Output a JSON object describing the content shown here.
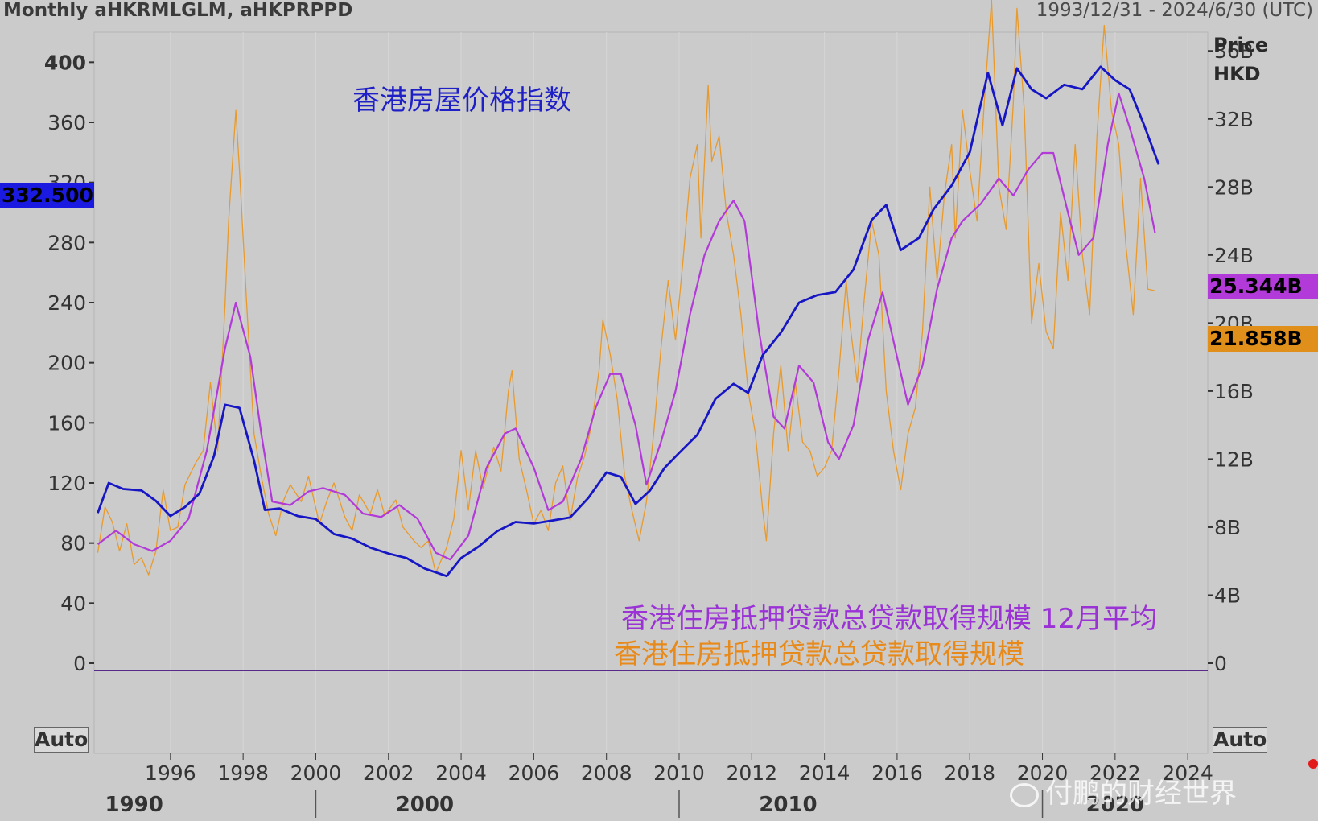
{
  "header": {
    "title": "Monthly aHKRMLGLM, aHKPRPPD",
    "date_range": "1993/12/31 - 2024/6/30 (UTC)"
  },
  "right_axis_header": {
    "line1": "Price",
    "line2": "HKD"
  },
  "buttons": {
    "left_auto": "Auto",
    "right_auto": "Auto"
  },
  "badges": {
    "left_value": "332.500",
    "purple_value": "25.344B",
    "orange_value": "21.858B"
  },
  "annotations": {
    "price_index": "香港房屋价格指数",
    "mortgage_avg": "香港住房抵押贷款总贷款取得规模 12月平均",
    "mortgage": "香港住房抵押贷款总贷款取得规模"
  },
  "watermark": "付鹏的财经世界",
  "colors": {
    "price_index": "#1616c4",
    "mortgage_avg": "#b23ad8",
    "mortgage": "#e89a2c",
    "grid": "#ffffff",
    "background": "#cbcbcb"
  },
  "chart_data": {
    "type": "line",
    "x_ticks": [
      "1996",
      "1998",
      "2000",
      "2002",
      "2004",
      "2006",
      "2008",
      "2010",
      "2012",
      "2014",
      "2016",
      "2018",
      "2020",
      "2022",
      "2024"
    ],
    "decade_labels": [
      "1990",
      "2000",
      "2010",
      "2020"
    ],
    "left_axis": {
      "ticks": [
        "0",
        "40",
        "80",
        "120",
        "160",
        "200",
        "240",
        "280",
        "320",
        "360",
        "400"
      ],
      "range": [
        -60,
        420
      ]
    },
    "right_axis": {
      "ticks": [
        "0",
        "4B",
        "8B",
        "12B",
        "16B",
        "20B",
        "24B",
        "28B",
        "32B",
        "36B"
      ],
      "range_billion": [
        -5.3,
        37.1
      ]
    },
    "x_range": [
      1993.9,
      2024.55
    ],
    "series": [
      {
        "name": "香港房屋价格指数",
        "axis": "left",
        "points": [
          [
            1994.0,
            100
          ],
          [
            1994.3,
            120
          ],
          [
            1994.7,
            116
          ],
          [
            1995.2,
            115
          ],
          [
            1995.6,
            108
          ],
          [
            1996.0,
            98
          ],
          [
            1996.4,
            104
          ],
          [
            1996.8,
            113
          ],
          [
            1997.2,
            138
          ],
          [
            1997.5,
            172
          ],
          [
            1997.9,
            170
          ],
          [
            1998.3,
            135
          ],
          [
            1998.6,
            102
          ],
          [
            1999.0,
            103
          ],
          [
            1999.5,
            98
          ],
          [
            2000.0,
            96
          ],
          [
            2000.5,
            86
          ],
          [
            2001.0,
            83
          ],
          [
            2001.5,
            77
          ],
          [
            2002.0,
            73
          ],
          [
            2002.5,
            70
          ],
          [
            2003.0,
            63
          ],
          [
            2003.6,
            58
          ],
          [
            2004.0,
            70
          ],
          [
            2004.5,
            78
          ],
          [
            2005.0,
            88
          ],
          [
            2005.5,
            94
          ],
          [
            2006.0,
            93
          ],
          [
            2006.5,
            95
          ],
          [
            2007.0,
            97
          ],
          [
            2007.5,
            110
          ],
          [
            2008.0,
            127
          ],
          [
            2008.4,
            124
          ],
          [
            2008.8,
            106
          ],
          [
            2009.2,
            115
          ],
          [
            2009.6,
            130
          ],
          [
            2010.0,
            140
          ],
          [
            2010.5,
            152
          ],
          [
            2011.0,
            176
          ],
          [
            2011.5,
            186
          ],
          [
            2011.9,
            180
          ],
          [
            2012.3,
            205
          ],
          [
            2012.8,
            220
          ],
          [
            2013.3,
            240
          ],
          [
            2013.8,
            245
          ],
          [
            2014.3,
            247
          ],
          [
            2014.8,
            262
          ],
          [
            2015.3,
            295
          ],
          [
            2015.7,
            305
          ],
          [
            2016.1,
            275
          ],
          [
            2016.6,
            283
          ],
          [
            2017.0,
            302
          ],
          [
            2017.5,
            318
          ],
          [
            2018.0,
            340
          ],
          [
            2018.5,
            393
          ],
          [
            2018.9,
            358
          ],
          [
            2019.3,
            396
          ],
          [
            2019.7,
            382
          ],
          [
            2020.1,
            376
          ],
          [
            2020.6,
            385
          ],
          [
            2021.1,
            382
          ],
          [
            2021.6,
            397
          ],
          [
            2022.0,
            388
          ],
          [
            2022.4,
            382
          ],
          [
            2022.8,
            358
          ],
          [
            2023.2,
            332
          ]
        ]
      },
      {
        "name": "香港住房抵押贷款总贷款取得规模 12月平均",
        "axis": "right",
        "points": [
          [
            1994.0,
            7.0
          ],
          [
            1994.5,
            7.8
          ],
          [
            1995.0,
            7.0
          ],
          [
            1995.5,
            6.6
          ],
          [
            1996.0,
            7.2
          ],
          [
            1996.5,
            8.5
          ],
          [
            1997.0,
            12.5
          ],
          [
            1997.5,
            18.5
          ],
          [
            1997.8,
            21.2
          ],
          [
            1998.2,
            18.0
          ],
          [
            1998.5,
            13.5
          ],
          [
            1998.8,
            9.5
          ],
          [
            1999.3,
            9.3
          ],
          [
            1999.8,
            10.1
          ],
          [
            2000.2,
            10.3
          ],
          [
            2000.8,
            9.9
          ],
          [
            2001.3,
            8.8
          ],
          [
            2001.8,
            8.6
          ],
          [
            2002.3,
            9.3
          ],
          [
            2002.8,
            8.5
          ],
          [
            2003.3,
            6.5
          ],
          [
            2003.7,
            6.1
          ],
          [
            2004.2,
            7.5
          ],
          [
            2004.7,
            11.5
          ],
          [
            2005.2,
            13.5
          ],
          [
            2005.5,
            13.8
          ],
          [
            2006.0,
            11.5
          ],
          [
            2006.4,
            9.0
          ],
          [
            2006.8,
            9.5
          ],
          [
            2007.3,
            12.0
          ],
          [
            2007.7,
            15.0
          ],
          [
            2008.1,
            17.0
          ],
          [
            2008.4,
            17.0
          ],
          [
            2008.8,
            14.0
          ],
          [
            2009.1,
            10.5
          ],
          [
            2009.5,
            13.0
          ],
          [
            2009.9,
            16.0
          ],
          [
            2010.3,
            20.5
          ],
          [
            2010.7,
            24.0
          ],
          [
            2011.1,
            26.0
          ],
          [
            2011.5,
            27.2
          ],
          [
            2011.8,
            26.0
          ],
          [
            2012.2,
            19.5
          ],
          [
            2012.6,
            14.5
          ],
          [
            2012.9,
            13.8
          ],
          [
            2013.3,
            17.5
          ],
          [
            2013.7,
            16.5
          ],
          [
            2014.1,
            13.0
          ],
          [
            2014.4,
            12.0
          ],
          [
            2014.8,
            14.0
          ],
          [
            2015.2,
            19.0
          ],
          [
            2015.6,
            21.8
          ],
          [
            2016.0,
            18.0
          ],
          [
            2016.3,
            15.2
          ],
          [
            2016.7,
            17.5
          ],
          [
            2017.1,
            22.0
          ],
          [
            2017.5,
            25.0
          ],
          [
            2017.8,
            26.0
          ],
          [
            2018.3,
            27.0
          ],
          [
            2018.8,
            28.5
          ],
          [
            2019.2,
            27.5
          ],
          [
            2019.6,
            29.0
          ],
          [
            2020.0,
            30.0
          ],
          [
            2020.3,
            30.0
          ],
          [
            2020.7,
            26.5
          ],
          [
            2021.0,
            24.0
          ],
          [
            2021.4,
            25.0
          ],
          [
            2021.8,
            30.5
          ],
          [
            2022.1,
            33.5
          ],
          [
            2022.4,
            31.5
          ],
          [
            2022.8,
            28.5
          ],
          [
            2023.1,
            25.3
          ]
        ]
      },
      {
        "name": "香港住房抵押贷款总贷款取得规模",
        "axis": "right",
        "points": [
          [
            1994.0,
            6.5
          ],
          [
            1994.2,
            9.2
          ],
          [
            1994.4,
            8.3
          ],
          [
            1994.6,
            6.6
          ],
          [
            1994.8,
            8.2
          ],
          [
            1995.0,
            5.8
          ],
          [
            1995.2,
            6.2
          ],
          [
            1995.4,
            5.2
          ],
          [
            1995.6,
            6.6
          ],
          [
            1995.8,
            10.2
          ],
          [
            1996.0,
            7.8
          ],
          [
            1996.2,
            8.0
          ],
          [
            1996.4,
            10.5
          ],
          [
            1996.7,
            11.8
          ],
          [
            1996.9,
            12.5
          ],
          [
            1997.1,
            16.5
          ],
          [
            1997.3,
            12.5
          ],
          [
            1997.5,
            21.0
          ],
          [
            1997.6,
            26.0
          ],
          [
            1997.8,
            32.5
          ],
          [
            1997.9,
            29.0
          ],
          [
            1998.1,
            21.0
          ],
          [
            1998.3,
            13.5
          ],
          [
            1998.5,
            11.0
          ],
          [
            1998.7,
            8.8
          ],
          [
            1998.9,
            7.5
          ],
          [
            1999.1,
            9.5
          ],
          [
            1999.3,
            10.5
          ],
          [
            1999.6,
            9.5
          ],
          [
            1999.8,
            11.0
          ],
          [
            2000.1,
            8.2
          ],
          [
            2000.3,
            9.5
          ],
          [
            2000.5,
            10.6
          ],
          [
            2000.8,
            8.6
          ],
          [
            2001.0,
            7.8
          ],
          [
            2001.2,
            9.9
          ],
          [
            2001.5,
            8.8
          ],
          [
            2001.7,
            10.2
          ],
          [
            2001.9,
            8.7
          ],
          [
            2002.2,
            9.6
          ],
          [
            2002.4,
            8.0
          ],
          [
            2002.7,
            7.2
          ],
          [
            2002.9,
            6.8
          ],
          [
            2003.1,
            7.2
          ],
          [
            2003.3,
            5.3
          ],
          [
            2003.6,
            6.8
          ],
          [
            2003.8,
            8.5
          ],
          [
            2004.0,
            12.5
          ],
          [
            2004.2,
            9.0
          ],
          [
            2004.4,
            12.5
          ],
          [
            2004.6,
            10.3
          ],
          [
            2004.9,
            12.7
          ],
          [
            2005.1,
            11.3
          ],
          [
            2005.3,
            16.0
          ],
          [
            2005.4,
            17.2
          ],
          [
            2005.6,
            12.0
          ],
          [
            2005.8,
            10.2
          ],
          [
            2006.0,
            8.2
          ],
          [
            2006.2,
            9.0
          ],
          [
            2006.4,
            7.8
          ],
          [
            2006.6,
            10.6
          ],
          [
            2006.8,
            11.6
          ],
          [
            2007.0,
            8.4
          ],
          [
            2007.2,
            10.9
          ],
          [
            2007.4,
            12.2
          ],
          [
            2007.6,
            14.1
          ],
          [
            2007.8,
            17.3
          ],
          [
            2007.9,
            20.2
          ],
          [
            2008.1,
            18.2
          ],
          [
            2008.3,
            15.5
          ],
          [
            2008.5,
            11.0
          ],
          [
            2008.7,
            9.0
          ],
          [
            2008.9,
            7.2
          ],
          [
            2009.1,
            9.5
          ],
          [
            2009.3,
            13.5
          ],
          [
            2009.5,
            18.5
          ],
          [
            2009.7,
            22.5
          ],
          [
            2009.9,
            19.0
          ],
          [
            2010.1,
            23.5
          ],
          [
            2010.3,
            28.5
          ],
          [
            2010.5,
            30.5
          ],
          [
            2010.6,
            25.0
          ],
          [
            2010.8,
            34.0
          ],
          [
            2010.9,
            29.5
          ],
          [
            2011.1,
            31.0
          ],
          [
            2011.3,
            26.5
          ],
          [
            2011.5,
            24.0
          ],
          [
            2011.7,
            20.5
          ],
          [
            2011.9,
            16.0
          ],
          [
            2012.1,
            13.5
          ],
          [
            2012.3,
            9.0
          ],
          [
            2012.4,
            7.2
          ],
          [
            2012.6,
            13.5
          ],
          [
            2012.8,
            17.5
          ],
          [
            2013.0,
            12.5
          ],
          [
            2013.2,
            16.5
          ],
          [
            2013.4,
            13.0
          ],
          [
            2013.6,
            12.5
          ],
          [
            2013.8,
            11.0
          ],
          [
            2014.0,
            11.5
          ],
          [
            2014.2,
            12.5
          ],
          [
            2014.4,
            17.2
          ],
          [
            2014.6,
            22.5
          ],
          [
            2014.7,
            20.0
          ],
          [
            2014.9,
            16.5
          ],
          [
            2015.1,
            21.5
          ],
          [
            2015.3,
            26.0
          ],
          [
            2015.5,
            24.0
          ],
          [
            2015.7,
            16.0
          ],
          [
            2015.9,
            12.5
          ],
          [
            2016.1,
            10.2
          ],
          [
            2016.3,
            13.5
          ],
          [
            2016.5,
            15.0
          ],
          [
            2016.7,
            19.5
          ],
          [
            2016.9,
            28.0
          ],
          [
            2017.1,
            22.5
          ],
          [
            2017.3,
            27.5
          ],
          [
            2017.5,
            30.5
          ],
          [
            2017.6,
            25.0
          ],
          [
            2017.8,
            32.5
          ],
          [
            2018.0,
            29.0
          ],
          [
            2018.2,
            26.0
          ],
          [
            2018.4,
            33.0
          ],
          [
            2018.6,
            39.0
          ],
          [
            2018.8,
            28.0
          ],
          [
            2019.0,
            25.5
          ],
          [
            2019.2,
            33.0
          ],
          [
            2019.3,
            38.5
          ],
          [
            2019.5,
            32.5
          ],
          [
            2019.7,
            20.0
          ],
          [
            2019.9,
            23.5
          ],
          [
            2020.1,
            19.5
          ],
          [
            2020.3,
            18.5
          ],
          [
            2020.5,
            26.5
          ],
          [
            2020.7,
            22.5
          ],
          [
            2020.9,
            30.5
          ],
          [
            2021.1,
            24.0
          ],
          [
            2021.3,
            20.5
          ],
          [
            2021.5,
            31.0
          ],
          [
            2021.7,
            37.5
          ],
          [
            2021.9,
            32.5
          ],
          [
            2022.1,
            30.5
          ],
          [
            2022.3,
            24.5
          ],
          [
            2022.5,
            20.5
          ],
          [
            2022.7,
            28.5
          ],
          [
            2022.9,
            22.0
          ],
          [
            2023.1,
            21.9
          ]
        ]
      }
    ]
  }
}
